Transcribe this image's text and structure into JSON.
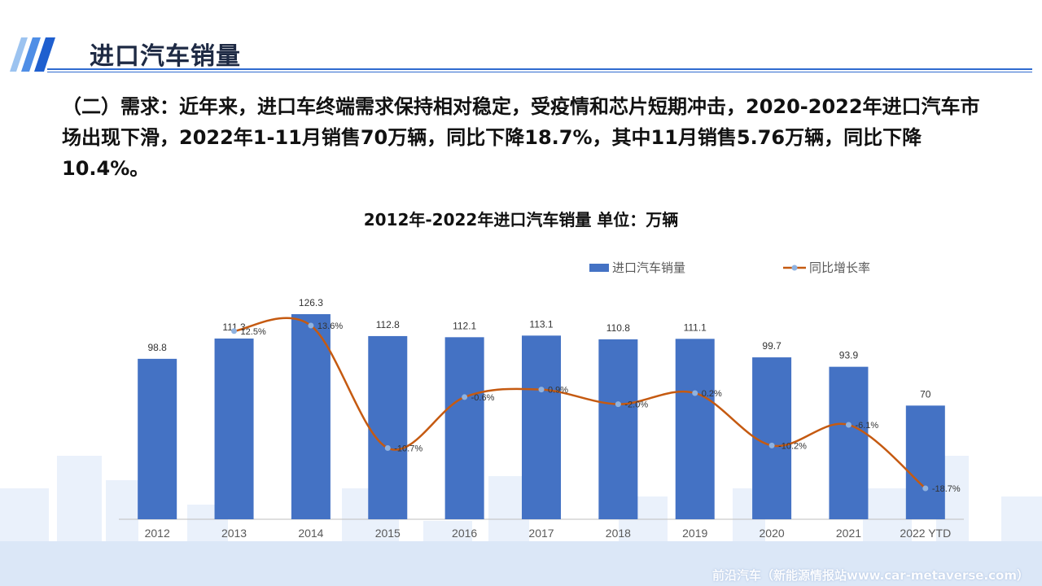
{
  "header": {
    "title": "进口汽车销量"
  },
  "paragraph": "（二）需求：近年来，进口车终端需求保持相对稳定，受疫情和芯片短期冲击，2020-2022年进口汽车市场出现下滑，2022年1-11月销售70万辆，同比下降18.7%，其中11月销售5.76万辆，同比下降10.4%。",
  "watermark": "前沿汽车（新能源情报站www.car-metaverse.com）",
  "colors": {
    "bar": "#4472c4",
    "line": "#c55a11",
    "marker": "#8fb2e0",
    "header_blue": "#2f6bd0"
  },
  "chart_data": {
    "type": "bar",
    "title": "2012年-2022年进口汽车销量 单位：万辆",
    "categories": [
      "2012",
      "2013",
      "2014",
      "2015",
      "2016",
      "2017",
      "2018",
      "2019",
      "2020",
      "2021",
      "2022 YTD"
    ],
    "series": [
      {
        "name": "进口汽车销量",
        "type": "bar",
        "axis": "left",
        "values": [
          98.8,
          111.3,
          126.3,
          112.8,
          112.1,
          113.1,
          110.8,
          111.1,
          99.7,
          93.9,
          70
        ],
        "labels": [
          "98.8",
          "111.3",
          "126.3",
          "112.8",
          "112.1",
          "113.1",
          "110.8",
          "111.1",
          "99.7",
          "93.9",
          "70"
        ]
      },
      {
        "name": "同比增长率",
        "type": "line",
        "axis": "right",
        "smooth": true,
        "values": [
          null,
          12.5,
          13.6,
          -10.7,
          -0.6,
          0.9,
          -2.0,
          0.2,
          -10.2,
          -6.1,
          -18.7
        ],
        "labels": [
          "",
          "12.5%",
          "13.6%",
          "-10.7%",
          "-0.6%",
          "0.9%",
          "-2.0%",
          "0.2%",
          "-10.2%",
          "-6.1%",
          "-18.7%"
        ]
      }
    ],
    "legend_position": "top-right",
    "grid": false,
    "ylim_left": [
      0,
      126.3
    ],
    "ylim_right": [
      -25,
      20
    ]
  }
}
